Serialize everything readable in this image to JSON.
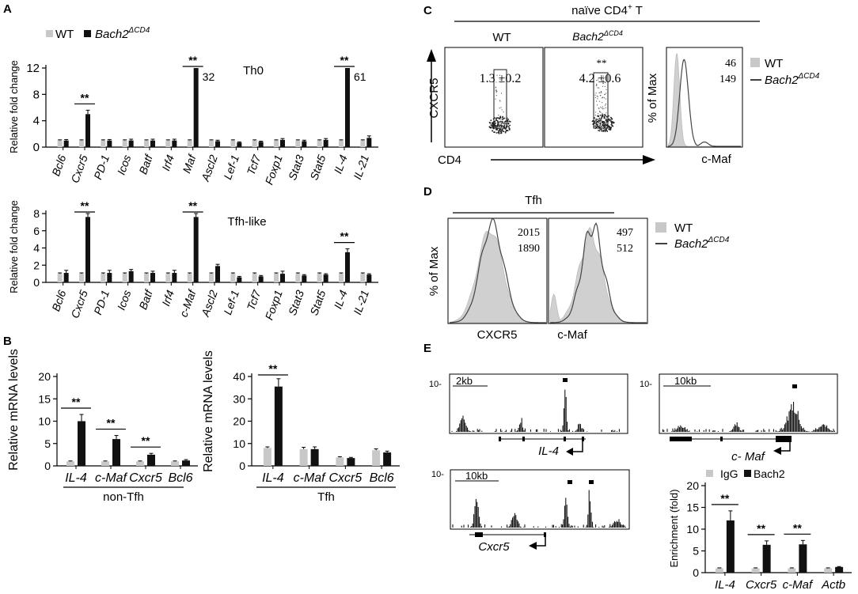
{
  "colors": {
    "wt": "#c8c8c8",
    "ko": "#111111",
    "fill": "#d0d0d0",
    "line": "#444444"
  },
  "panels": {
    "a": "A",
    "b": "B",
    "c": "C",
    "d": "D",
    "e": "E"
  },
  "legend": {
    "wt": "WT",
    "ko": "Bach2",
    "ko_sup": "ΔCD4",
    "igg": "IgG",
    "bach2": "Bach2"
  },
  "sig": "**",
  "chart_data": [
    {
      "id": "A-th0",
      "type": "bar",
      "title": "Th0",
      "ylabel": "Relative fold change",
      "ylim": [
        0,
        12
      ],
      "yticks": [
        0,
        4,
        8,
        12
      ],
      "categories": [
        "Bcl6",
        "Cxcr5",
        "PD-1",
        "Icos",
        "Batf",
        "Irf4",
        "Maf",
        "Ascl2",
        "Lef-1",
        "Tcf7",
        "Foxp1",
        "Stat3",
        "Stat5",
        "IL-4",
        "IL-21"
      ],
      "series": [
        {
          "name": "WT",
          "values": [
            1,
            1,
            1,
            1,
            1,
            1,
            1,
            1,
            1,
            1,
            1,
            1,
            1,
            1,
            1
          ],
          "err": [
            0.1,
            0.1,
            0.1,
            0.1,
            0.1,
            0.1,
            0.1,
            0.1,
            0.1,
            0.1,
            0.1,
            0.1,
            0.1,
            0.1,
            0.1
          ]
        },
        {
          "name": "Bach2ΔCD4",
          "values": [
            1.0,
            5.0,
            1.0,
            1.0,
            1.0,
            1.0,
            12,
            0.9,
            0.7,
            0.8,
            1.1,
            0.9,
            1.1,
            12,
            1.4
          ],
          "err": [
            0.15,
            0.6,
            0.15,
            0.2,
            0.2,
            0.2,
            0,
            0.15,
            0.1,
            0.1,
            0.2,
            0.15,
            0.2,
            0,
            0.3
          ]
        }
      ],
      "sig": [
        {
          "index": 1,
          "text": "**"
        },
        {
          "index": 6,
          "text": "**"
        },
        {
          "index": 13,
          "text": "**"
        }
      ],
      "annotations": [
        {
          "index": 6,
          "text": "32"
        },
        {
          "index": 13,
          "text": "61"
        }
      ]
    },
    {
      "id": "A-tfh",
      "type": "bar",
      "title": "Tfh-like",
      "ylabel": "Relative fold change",
      "ylim": [
        0,
        8
      ],
      "yticks": [
        0,
        2,
        4,
        6,
        8
      ],
      "categories": [
        "Bcl6",
        "Cxcr5",
        "PD-1",
        "Icos",
        "Batf",
        "Irf4",
        "c-Maf",
        "Ascl2",
        "Lef-1",
        "Tcf7",
        "Foxp1",
        "Stat3",
        "Stat5",
        "IL-4",
        "IL-21"
      ],
      "series": [
        {
          "name": "WT",
          "values": [
            1,
            1,
            1,
            1,
            1,
            1,
            1,
            1,
            1,
            1,
            1,
            1,
            1,
            1,
            1
          ],
          "err": [
            0.1,
            0.1,
            0.1,
            0.1,
            0.1,
            0.1,
            0.1,
            0.1,
            0.1,
            0.1,
            0.1,
            0.1,
            0.1,
            0.1,
            0.1
          ]
        },
        {
          "name": "Bach2ΔCD4",
          "values": [
            1.1,
            7.6,
            1.1,
            1.3,
            1.1,
            1.1,
            7.6,
            1.9,
            0.6,
            0.7,
            1.0,
            0.8,
            0.9,
            3.5,
            0.9
          ],
          "err": [
            0.3,
            1.3,
            0.3,
            0.2,
            0.2,
            0.3,
            1.0,
            0.2,
            0.1,
            0.1,
            0.3,
            0.1,
            0.1,
            0.4,
            0.1
          ]
        }
      ],
      "sig": [
        {
          "index": 1,
          "text": "**"
        },
        {
          "index": 6,
          "text": "**"
        },
        {
          "index": 13,
          "text": "**"
        }
      ],
      "annotations": []
    },
    {
      "id": "B-nontfh",
      "type": "bar",
      "group_label": "non-Tfh",
      "ylabel": "Relative mRNA levels",
      "ylim": [
        0,
        20
      ],
      "yticks": [
        0,
        5,
        10,
        15,
        20
      ],
      "categories": [
        "IL-4",
        "c-Maf",
        "Cxcr5",
        "Bcl6"
      ],
      "series": [
        {
          "name": "WT",
          "values": [
            1,
            1,
            1,
            1
          ],
          "err": [
            0.1,
            0.1,
            0.1,
            0.1
          ]
        },
        {
          "name": "Bach2ΔCD4",
          "values": [
            10,
            6,
            2.5,
            1.2
          ],
          "err": [
            1.5,
            0.8,
            0.3,
            0.2
          ]
        }
      ],
      "sig": [
        {
          "index": 0,
          "text": "**"
        },
        {
          "index": 1,
          "text": "**"
        },
        {
          "index": 2,
          "text": "**"
        }
      ]
    },
    {
      "id": "B-tfh",
      "type": "bar",
      "group_label": "Tfh",
      "ylabel": "Relative mRNA levels",
      "ylim": [
        0,
        40
      ],
      "yticks": [
        0,
        10,
        20,
        30,
        40
      ],
      "categories": [
        "IL-4",
        "c-Maf",
        "Cxcr5",
        "Bcl6"
      ],
      "series": [
        {
          "name": "WT",
          "values": [
            8,
            7.5,
            3.8,
            7
          ],
          "err": [
            0.5,
            0.8,
            0.3,
            0.6
          ]
        },
        {
          "name": "Bach2ΔCD4",
          "values": [
            35.5,
            7.5,
            3.5,
            6
          ],
          "err": [
            3.5,
            1.0,
            0.3,
            0.6
          ]
        }
      ],
      "sig": [
        {
          "index": 0,
          "text": "**"
        }
      ]
    },
    {
      "id": "E-chip",
      "type": "bar",
      "ylabel": "Enrichment (fold)",
      "ylim": [
        0,
        20
      ],
      "yticks": [
        0,
        5,
        10,
        15,
        20
      ],
      "categories": [
        "IL-4",
        "Cxcr5",
        "c-Maf",
        "Actb"
      ],
      "series": [
        {
          "name": "IgG",
          "values": [
            1,
            1,
            1,
            1
          ],
          "err": [
            0.1,
            0.1,
            0.1,
            0.1
          ]
        },
        {
          "name": "Bach2",
          "values": [
            12,
            6.4,
            6.5,
            1.3
          ],
          "err": [
            2.2,
            0.9,
            0.9,
            0.1
          ]
        }
      ],
      "sig": [
        {
          "index": 0,
          "text": "**"
        },
        {
          "index": 1,
          "text": "**"
        },
        {
          "index": 2,
          "text": "**"
        }
      ]
    }
  ],
  "panel_c": {
    "header": "naïve CD4",
    "header_sup": "+",
    "header_tail": " T",
    "wt_label": "WT",
    "ko_label": "Bach2",
    "wt_value": "1.3 ±0.2",
    "ko_value": "4.2 ±0.6",
    "ko_sig": "**",
    "yaxis": "CXCR5",
    "xaxis": "CD4",
    "hist_yaxis": "% of Max",
    "hist_xaxis": "c-Maf",
    "mfi_wt": "46",
    "mfi_ko": "149"
  },
  "panel_d": {
    "header": "Tfh",
    "yaxis": "% of Max",
    "x1": "CXCR5",
    "x2": "c-Maf",
    "cxcr5_wt": "2015",
    "cxcr5_ko": "1890",
    "cmaf_wt": "497",
    "cmaf_ko": "512"
  },
  "panel_e": {
    "tracks": [
      {
        "gene": "IL-4",
        "scale": "2kb",
        "ymax": "10-"
      },
      {
        "gene": "c- Maf",
        "scale": "10kb",
        "ymax": "10-"
      },
      {
        "gene": "Cxcr5",
        "scale": "10kb",
        "ymax": "10-"
      }
    ]
  }
}
